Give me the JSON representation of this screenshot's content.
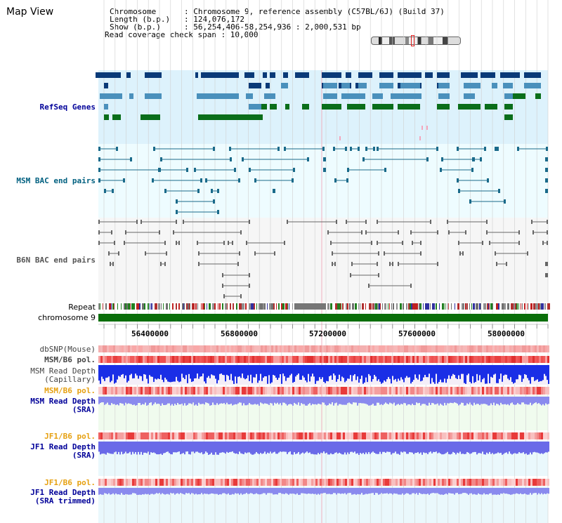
{
  "page": {
    "title": "Map View"
  },
  "info": {
    "rows": [
      "Chromosome      : Chromosome 9, reference assembly (C57BL/6J) (Build 37)",
      "Length (b.p.)   : 124,076,172",
      "Show (b.p.)     : 56,254,406-58,254,936 : 2,000,531 bp",
      "Read coverage check span : 10,000"
    ]
  },
  "tracks": {
    "refseq": "RefSeq Genes",
    "msm_bac": "MSM BAC end pairs",
    "b6n_bac": "B6N BAC end pairs",
    "repeat": "Repeat",
    "chromosome": "chromosome 9",
    "dbsnp": "dbSNP(Mouse)",
    "msm_b6_pol_1": "MSM/B6 pol.",
    "msm_depth_cap_1": "MSM Read Depth",
    "msm_depth_cap_2": "(Capillary)",
    "msm_b6_pol_2": "MSM/B6 pol.",
    "msm_depth_sra_1": "MSM Read Depth",
    "msm_depth_sra_2": "(SRA)",
    "jf1_pol_1": "JF1/B6 pol.",
    "jf1_depth_sra_1": "JF1 Read Depth",
    "jf1_depth_sra_2": "(SRA)",
    "jf1_pol_2": "JF1/B6 pol.",
    "jf1_depth_trim_1": "JF1 Read Depth",
    "jf1_depth_trim_2": "(SRA trimmed)"
  },
  "axis": {
    "ticks": [
      "56400000",
      "56800000",
      "57200000",
      "57600000",
      "58000000"
    ]
  },
  "colors": {
    "refseq_bg": "#ddf2fc",
    "msm_bg": "#eefcff",
    "b6n_bg": "#f6f6f6",
    "gene_dark": "#0a3a78",
    "gene_mid": "#4a90bc",
    "gene_green": "#0a6e1a",
    "msm_line": "#1a6a8a",
    "b6n_line": "#666666",
    "chromosome_bar": "#0a6e0a",
    "depth_blue": "#1a2ee6",
    "depth_sra": "#8a8aee",
    "label_navy": "#000099",
    "label_teal": "#006080",
    "label_orange": "#e6a010",
    "label_gray": "#444444"
  }
}
